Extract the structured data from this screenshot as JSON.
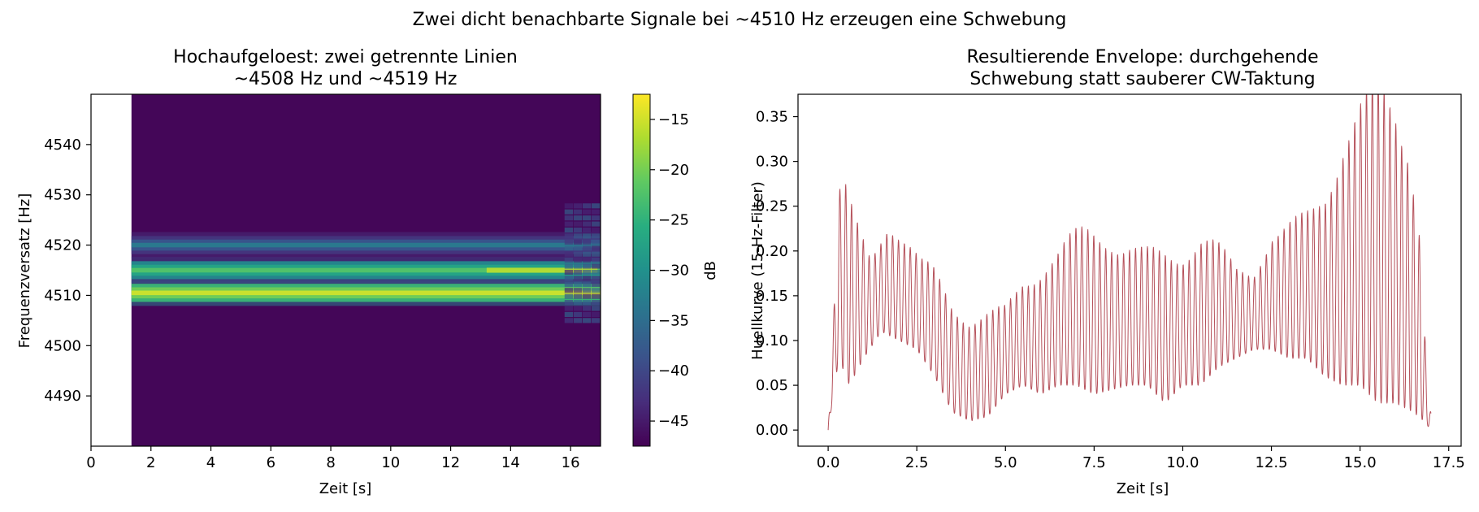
{
  "suptitle": "Zwei dicht benachbarte Signale bei ~4510 Hz erzeugen eine Schwebung",
  "colors": {
    "envelope_line": "#b5505a",
    "viridis_low": "#440154",
    "viridis_high": "#fde725"
  },
  "chart_data": [
    {
      "type": "heatmap",
      "title_line1": "Hochaufgeloest: zwei getrennte Linien",
      "title_line2": "~4508 Hz und ~4519 Hz",
      "xlabel": "Zeit [s]",
      "ylabel": "Frequenzversatz [Hz]",
      "xlim": [
        0,
        17
      ],
      "ylim": [
        4480,
        4550
      ],
      "xticks": [
        0,
        2,
        4,
        6,
        8,
        10,
        12,
        14,
        16
      ],
      "yticks": [
        4490,
        4500,
        4510,
        4520,
        4530,
        4540
      ],
      "data_start_time": 1.35,
      "colormap": "viridis",
      "colorbar": {
        "label": "dB",
        "vmin": -47.5,
        "vmax": -12.5,
        "ticks": [
          -15,
          -20,
          -25,
          -30,
          -35,
          -40,
          -45
        ]
      },
      "lines": [
        {
          "freq": 4510.5,
          "level_db": -15
        },
        {
          "freq": 4515.0,
          "level_db": -22
        },
        {
          "freq": 4520.0,
          "level_db": -33
        }
      ],
      "background_db": -47,
      "grid": false
    },
    {
      "type": "line",
      "title_line1": "Resultierende Envelope: durchgehende",
      "title_line2": "Schwebung statt sauberer CW-Taktung",
      "xlabel": "Zeit [s]",
      "ylabel": "Huellkurve (15-Hz-Filter)",
      "xlim": [
        -0.85,
        17.85
      ],
      "ylim": [
        -0.018,
        0.375
      ],
      "xticks": [
        "0.0",
        "2.5",
        "5.0",
        "7.5",
        "10.0",
        "12.5",
        "15.0",
        "17.5"
      ],
      "yticks": [
        "0.00",
        "0.05",
        "0.10",
        "0.15",
        "0.20",
        "0.25",
        "0.30",
        "0.35"
      ],
      "series": [
        {
          "beat_frequency_hz": 6,
          "envelope_peaks": [
            [
              0.0,
              0.0
            ],
            [
              0.15,
              0.12
            ],
            [
              0.3,
              0.26
            ],
            [
              0.45,
              0.27
            ],
            [
              0.7,
              0.24
            ],
            [
              1.2,
              0.2
            ],
            [
              1.7,
              0.245
            ],
            [
              2.2,
              0.21
            ],
            [
              2.6,
              0.18
            ],
            [
              3.0,
              0.165
            ],
            [
              3.5,
              0.13
            ],
            [
              4.0,
              0.12
            ],
            [
              4.5,
              0.13
            ],
            [
              5.0,
              0.14
            ],
            [
              5.5,
              0.175
            ],
            [
              6.0,
              0.185
            ],
            [
              6.5,
              0.19
            ],
            [
              7.0,
              0.2
            ],
            [
              7.5,
              0.205
            ],
            [
              8.0,
              0.21
            ],
            [
              8.5,
              0.21
            ],
            [
              9.0,
              0.205
            ],
            [
              9.5,
              0.205
            ],
            [
              10.0,
              0.2
            ],
            [
              10.5,
              0.205
            ],
            [
              11.0,
              0.19
            ],
            [
              11.5,
              0.17
            ],
            [
              12.0,
              0.175
            ],
            [
              12.5,
              0.225
            ],
            [
              13.0,
              0.235
            ],
            [
              13.5,
              0.245
            ],
            [
              14.0,
              0.265
            ],
            [
              14.5,
              0.305
            ],
            [
              15.0,
              0.325
            ],
            [
              15.5,
              0.345
            ],
            [
              16.0,
              0.355
            ],
            [
              16.4,
              0.34
            ],
            [
              16.7,
              0.24
            ],
            [
              16.9,
              0.05
            ],
            [
              17.0,
              0.02
            ]
          ],
          "envelope_troughs": [
            [
              0.0,
              0.0
            ],
            [
              0.3,
              0.08
            ],
            [
              0.6,
              0.05
            ],
            [
              1.0,
              0.08
            ],
            [
              1.5,
              0.11
            ],
            [
              2.0,
              0.1
            ],
            [
              2.5,
              0.09
            ],
            [
              3.0,
              0.06
            ],
            [
              3.5,
              0.02
            ],
            [
              4.0,
              0.01
            ],
            [
              4.5,
              0.015
            ],
            [
              5.0,
              0.04
            ],
            [
              5.5,
              0.05
            ],
            [
              6.0,
              0.04
            ],
            [
              6.5,
              0.05
            ],
            [
              7.0,
              0.05
            ],
            [
              7.5,
              0.04
            ],
            [
              8.0,
              0.045
            ],
            [
              8.5,
              0.05
            ],
            [
              9.0,
              0.05
            ],
            [
              9.5,
              0.03
            ],
            [
              10.0,
              0.05
            ],
            [
              10.5,
              0.05
            ],
            [
              11.0,
              0.07
            ],
            [
              11.5,
              0.08
            ],
            [
              12.0,
              0.09
            ],
            [
              12.5,
              0.09
            ],
            [
              13.0,
              0.08
            ],
            [
              13.5,
              0.08
            ],
            [
              14.0,
              0.06
            ],
            [
              14.5,
              0.05
            ],
            [
              15.0,
              0.05
            ],
            [
              15.5,
              0.03
            ],
            [
              16.0,
              0.03
            ],
            [
              16.5,
              0.02
            ],
            [
              16.8,
              0.01
            ],
            [
              17.0,
              0.0
            ]
          ]
        }
      ],
      "grid": false
    }
  ]
}
